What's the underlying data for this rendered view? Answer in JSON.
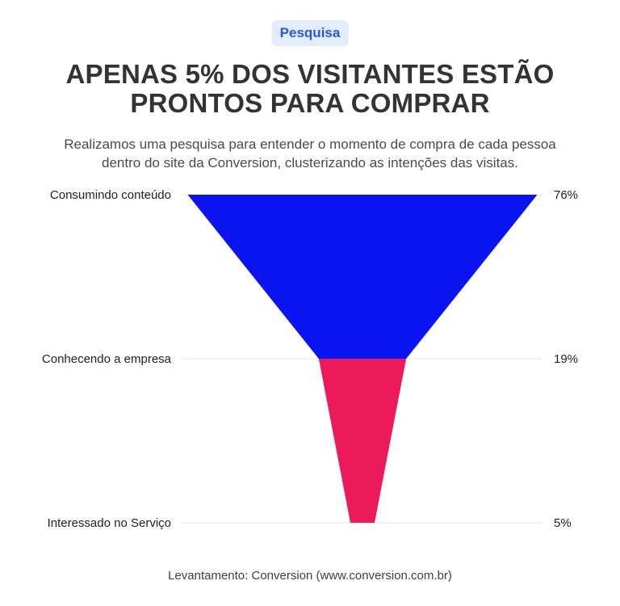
{
  "badge": "Pesquisa",
  "title": "APENAS 5% DOS VISITANTES ESTÃO PRONTOS PARA COMPRAR",
  "subtitle": "Realizamos uma pesquisa para entender o momento de compra de cada pessoa\ndentro do site da Conversion, clusterizando as intenções das visitas.",
  "source": "Levantamento: Conversion (www.conversion.com.br)",
  "colors": {
    "stage_1": "#0a14f0",
    "stage_2": "#ec1a5a",
    "grid": "#e6e6e6"
  },
  "chart_data": {
    "type": "funnel",
    "stages": [
      {
        "label": "Consumindo conteúdo",
        "value": 76,
        "value_label": "76%"
      },
      {
        "label": "Conhecendo a empresa",
        "value": 19,
        "value_label": "19%"
      },
      {
        "label": "Interessado no Serviço",
        "value": 5,
        "value_label": "5%"
      }
    ]
  }
}
